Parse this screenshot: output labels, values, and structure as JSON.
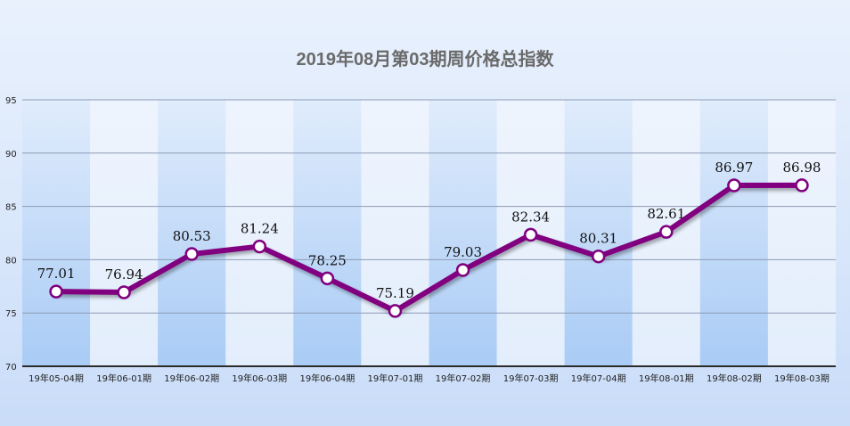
{
  "chart_data": {
    "type": "line",
    "title": "2019年08月第03期周价格总指数",
    "xlabel": "",
    "ylabel": "",
    "ylim": [
      70,
      95
    ],
    "yticks": [
      70,
      75,
      80,
      85,
      90,
      95
    ],
    "grid": true,
    "categories": [
      "19年05-04期",
      "19年06-01期",
      "19年06-02期",
      "19年06-03期",
      "19年06-04期",
      "19年07-01期",
      "19年07-02期",
      "19年07-03期",
      "19年07-04期",
      "19年08-01期",
      "19年08-02期",
      "19年08-03期"
    ],
    "series": [
      {
        "values": [
          77.01,
          76.94,
          80.53,
          81.24,
          78.25,
          75.19,
          79.03,
          82.34,
          80.31,
          82.61,
          86.97,
          86.98
        ],
        "labels": [
          "77.01",
          "76.94",
          "80.53",
          "81.24",
          "78.25",
          "75.19",
          "79.03",
          "82.34",
          "80.31",
          "82.61",
          "86.97",
          "86.98"
        ]
      }
    ],
    "colors": {
      "line": "#800080",
      "marker_fill": "#ffffff",
      "grid": "#8c9bb5",
      "band_dark": "#a9cbf5",
      "band_light": "#e3eefc"
    }
  }
}
